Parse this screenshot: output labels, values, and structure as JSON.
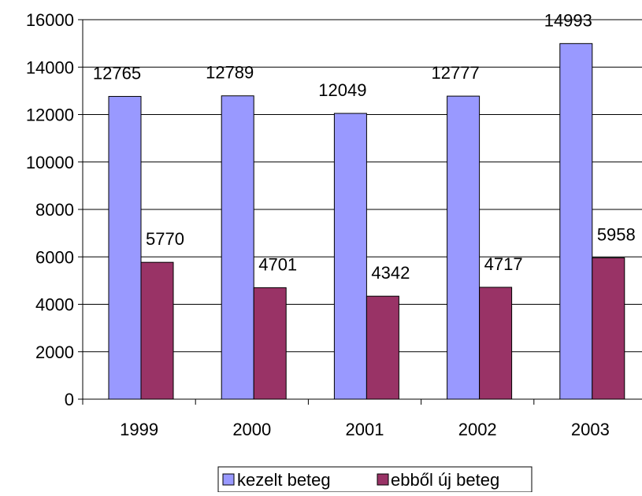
{
  "chart_data": {
    "type": "bar",
    "categories": [
      "1999",
      "2000",
      "2001",
      "2002",
      "2003"
    ],
    "series": [
      {
        "name": "kezelt beteg",
        "values": [
          12765,
          12789,
          12049,
          12777,
          14993
        ],
        "color": "#9999FF"
      },
      {
        "name": "ebből új beteg",
        "values": [
          5770,
          4701,
          4342,
          4717,
          5958
        ],
        "color": "#993366"
      }
    ],
    "data_labels": [
      [
        "12765",
        "12789",
        "12049",
        "12777",
        "14993"
      ],
      [
        "5770",
        "4701",
        "4342",
        "4717",
        "5958"
      ]
    ],
    "ylim": [
      0,
      16000
    ],
    "yticks": [
      0,
      2000,
      4000,
      6000,
      8000,
      10000,
      12000,
      14000,
      16000
    ],
    "ytick_labels": [
      "0",
      "2000",
      "4000",
      "6000",
      "8000",
      "10000",
      "12000",
      "14000",
      "16000"
    ],
    "grid": true,
    "legend_position": "bottom"
  }
}
